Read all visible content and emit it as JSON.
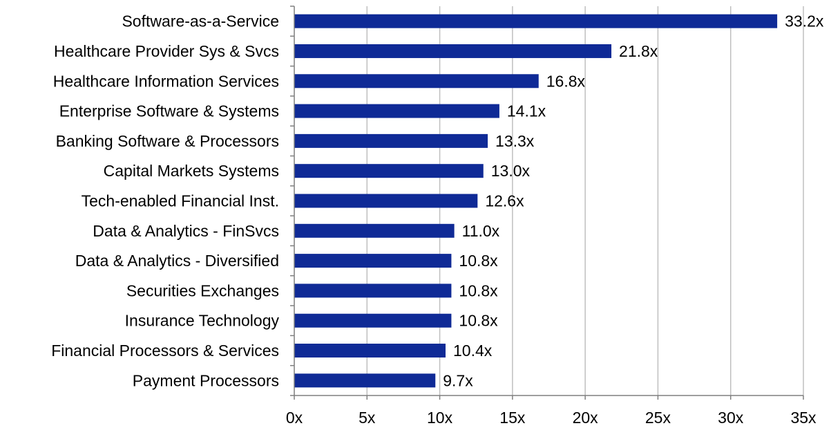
{
  "chart_data": {
    "type": "bar",
    "orientation": "horizontal",
    "categories": [
      "Software-as-a-Service",
      "Healthcare Provider Sys & Svcs",
      "Healthcare Information Services",
      "Enterprise Software & Systems",
      "Banking Software & Processors",
      "Capital Markets Systems",
      "Tech-enabled Financial Inst.",
      "Data & Analytics - FinSvcs",
      "Data & Analytics - Diversified",
      "Securities Exchanges",
      "Insurance Technology",
      "Financial Processors & Services",
      "Payment Processors"
    ],
    "values": [
      33.2,
      21.8,
      16.8,
      14.1,
      13.3,
      13.0,
      12.6,
      11.0,
      10.8,
      10.8,
      10.8,
      10.4,
      9.7
    ],
    "value_labels": [
      "33.2x",
      "21.8x",
      "16.8x",
      "14.1x",
      "13.3x",
      "13.0x",
      "12.6x",
      "11.0x",
      "10.8x",
      "10.8x",
      "10.8x",
      "10.4x",
      "9.7x"
    ],
    "xlim": [
      0,
      35
    ],
    "x_ticks": [
      0,
      5,
      10,
      15,
      20,
      25,
      30,
      35
    ],
    "x_tick_labels": [
      "0x",
      "5x",
      "10x",
      "15x",
      "20x",
      "25x",
      "30x",
      "35x"
    ],
    "grid": "vertical",
    "bar_color": "#0f2a96",
    "grid_color": "#bfbfbf",
    "axis_color": "#7f7f7f"
  }
}
